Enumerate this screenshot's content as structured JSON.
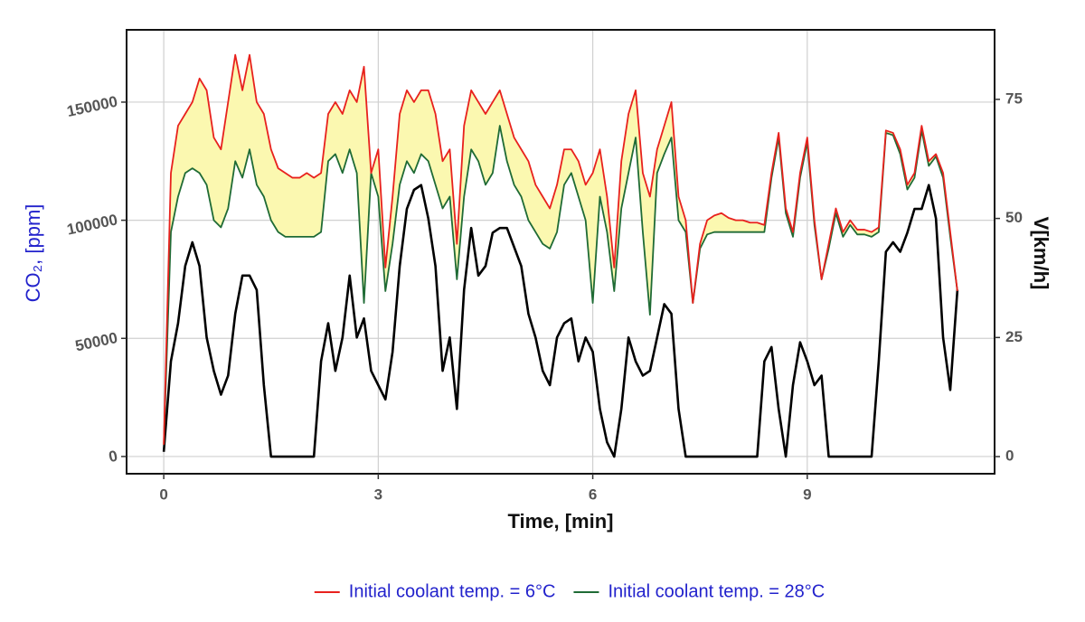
{
  "chart_data": {
    "type": "line",
    "x_label": "Time, [min]",
    "y_label": "CO₂, [ppm]",
    "y2_label": "V[km/h]",
    "xlim": [
      -0.52,
      11.62
    ],
    "ylim": [
      -7300,
      180600
    ],
    "y2lim": [
      -3.6,
      89.6
    ],
    "xticks": [
      0,
      3,
      6,
      9
    ],
    "yticks": [
      0,
      50000,
      100000,
      150000
    ],
    "y2ticks": [
      0,
      25,
      50,
      75
    ],
    "grid": true,
    "legend_position": "bottom",
    "fill_between_color": "#fbf8b0",
    "x": [
      0,
      0.1,
      0.2,
      0.3,
      0.4,
      0.5,
      0.6,
      0.7,
      0.8,
      0.9,
      1,
      1.1,
      1.2,
      1.3,
      1.4,
      1.5,
      1.6,
      1.7,
      1.8,
      1.9,
      2,
      2.1,
      2.2,
      2.3,
      2.4,
      2.5,
      2.6,
      2.7,
      2.8,
      2.9,
      3,
      3.1,
      3.2,
      3.3,
      3.4,
      3.5,
      3.6,
      3.7,
      3.8,
      3.9,
      4,
      4.1,
      4.2,
      4.3,
      4.4,
      4.5,
      4.6,
      4.7,
      4.8,
      4.9,
      5,
      5.1,
      5.2,
      5.3,
      5.4,
      5.5,
      5.6,
      5.7,
      5.8,
      5.9,
      6,
      6.1,
      6.2,
      6.3,
      6.4,
      6.5,
      6.6,
      6.7,
      6.8,
      6.9,
      7,
      7.1,
      7.2,
      7.3,
      7.4,
      7.5,
      7.6,
      7.7,
      7.8,
      7.9,
      8,
      8.1,
      8.2,
      8.3,
      8.4,
      8.5,
      8.6,
      8.7,
      8.8,
      8.9,
      9,
      9.1,
      9.2,
      9.3,
      9.4,
      9.5,
      9.6,
      9.7,
      9.8,
      9.9,
      10,
      10.1,
      10.2,
      10.3,
      10.4,
      10.5,
      10.6,
      10.7,
      10.8,
      10.9,
      11,
      11.1
    ],
    "series": [
      {
        "name": "Initial coolant temp. = 6°C",
        "color": "#e8211d",
        "values": [
          5000,
          120000,
          140000,
          145000,
          150000,
          160000,
          155000,
          135000,
          130000,
          150000,
          170000,
          155000,
          170000,
          150000,
          145000,
          130000,
          122000,
          120000,
          118000,
          118000,
          120000,
          118000,
          120000,
          145000,
          150000,
          145000,
          155000,
          150000,
          165000,
          120000,
          130000,
          80000,
          110000,
          145000,
          155000,
          150000,
          155000,
          155000,
          145000,
          125000,
          130000,
          90000,
          140000,
          155000,
          150000,
          145000,
          150000,
          155000,
          145000,
          135000,
          130000,
          125000,
          115000,
          110000,
          105000,
          115000,
          130000,
          130000,
          125000,
          115000,
          120000,
          130000,
          110000,
          80000,
          125000,
          145000,
          155000,
          120000,
          110000,
          130000,
          140000,
          150000,
          110000,
          100000,
          65000,
          90000,
          100000,
          102000,
          103000,
          101000,
          100000,
          100000,
          99000,
          99000,
          98000,
          120000,
          137000,
          105000,
          95000,
          120000,
          135000,
          100000,
          75000,
          90000,
          105000,
          95000,
          100000,
          96000,
          96000,
          95000,
          97000,
          138000,
          137000,
          130000,
          115000,
          120000,
          140000,
          125000,
          128000,
          120000,
          95000,
          70000
        ]
      },
      {
        "name": "Initial coolant temp. = 28°C",
        "color": "#1f6b35",
        "values": [
          5000,
          95000,
          110000,
          120000,
          122000,
          120000,
          115000,
          100000,
          97000,
          105000,
          125000,
          118000,
          130000,
          115000,
          110000,
          100000,
          95000,
          93000,
          93000,
          93000,
          93000,
          93000,
          95000,
          125000,
          128000,
          120000,
          130000,
          120000,
          65000,
          120000,
          110000,
          70000,
          90000,
          115000,
          125000,
          120000,
          128000,
          125000,
          115000,
          105000,
          110000,
          75000,
          110000,
          130000,
          125000,
          115000,
          120000,
          140000,
          125000,
          115000,
          110000,
          100000,
          95000,
          90000,
          88000,
          95000,
          115000,
          120000,
          110000,
          100000,
          65000,
          110000,
          95000,
          70000,
          105000,
          120000,
          135000,
          95000,
          60000,
          120000,
          128000,
          135000,
          100000,
          95000,
          65000,
          88000,
          94000,
          95000,
          95000,
          95000,
          95000,
          95000,
          95000,
          95000,
          95000,
          118000,
          135000,
          103000,
          93000,
          118000,
          133000,
          98000,
          75000,
          88000,
          103000,
          93000,
          98000,
          94000,
          94000,
          93000,
          95000,
          137000,
          136000,
          128000,
          113000,
          118000,
          138000,
          123000,
          127000,
          118000,
          93000,
          70000
        ]
      },
      {
        "color": "#000000",
        "axis": "y2",
        "values": [
          1,
          20,
          28,
          40,
          45,
          40,
          25,
          18,
          13,
          17,
          30,
          38,
          38,
          35,
          15,
          0,
          0,
          0,
          0,
          0,
          0,
          0,
          20,
          28,
          18,
          25,
          38,
          25,
          29,
          18,
          15,
          12,
          22,
          40,
          52,
          56,
          57,
          50,
          40,
          18,
          25,
          10,
          35,
          48,
          38,
          40,
          47,
          48,
          48,
          44,
          40,
          30,
          25,
          18,
          15,
          25,
          28,
          29,
          20,
          25,
          22,
          10,
          3,
          0,
          10,
          25,
          20,
          17,
          18,
          25,
          32,
          30,
          10,
          0,
          0,
          0,
          0,
          0,
          0,
          0,
          0,
          0,
          0,
          0,
          20,
          23,
          10,
          0,
          15,
          24,
          20,
          15,
          17,
          0,
          0,
          0,
          0,
          0,
          0,
          0,
          20,
          43,
          45,
          43,
          47,
          52,
          52,
          57,
          50,
          25,
          14,
          35
        ]
      }
    ]
  }
}
